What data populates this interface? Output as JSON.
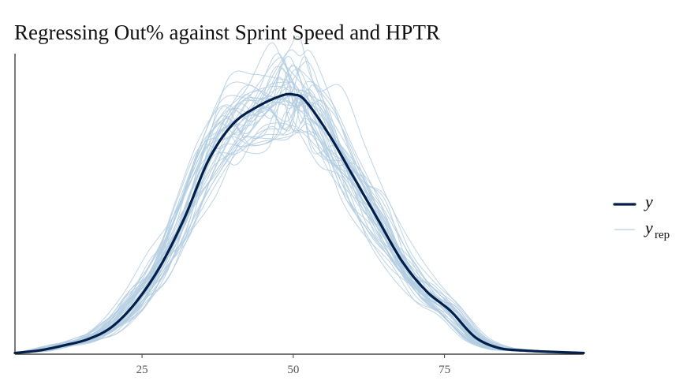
{
  "chart_data": {
    "type": "line",
    "title": "Regressing Out% against Sprint Speed and HPTR",
    "xlabel": "",
    "ylabel": "",
    "xlim": [
      4,
      98
    ],
    "ylim": [
      0,
      0.0245
    ],
    "xticks": [
      25,
      50,
      75
    ],
    "y_axis_labels": false,
    "grid": false,
    "legend_position": "right",
    "colors": {
      "y": "#011f4b",
      "y_rep": "#b3cde0"
    },
    "series": [
      {
        "name": "y",
        "role": "observed",
        "x": [
          4,
          8,
          12,
          16,
          20,
          24,
          28,
          32,
          36,
          40,
          44,
          48,
          50,
          52,
          56,
          60,
          64,
          68,
          72,
          76,
          80,
          84,
          88,
          92,
          98
        ],
        "y": [
          0.0001,
          0.0003,
          0.0007,
          0.0012,
          0.0022,
          0.0042,
          0.0071,
          0.011,
          0.0157,
          0.0186,
          0.02,
          0.0209,
          0.021,
          0.0205,
          0.0177,
          0.0143,
          0.0109,
          0.0075,
          0.0051,
          0.0035,
          0.0014,
          0.0005,
          0.0003,
          0.0002,
          0.0001
        ]
      }
    ],
    "replicates": {
      "name": "y_rep",
      "count": 40
    }
  },
  "legend": {
    "items": [
      {
        "symbol": "y",
        "sub": ""
      },
      {
        "symbol": "y",
        "sub": "rep"
      }
    ]
  }
}
